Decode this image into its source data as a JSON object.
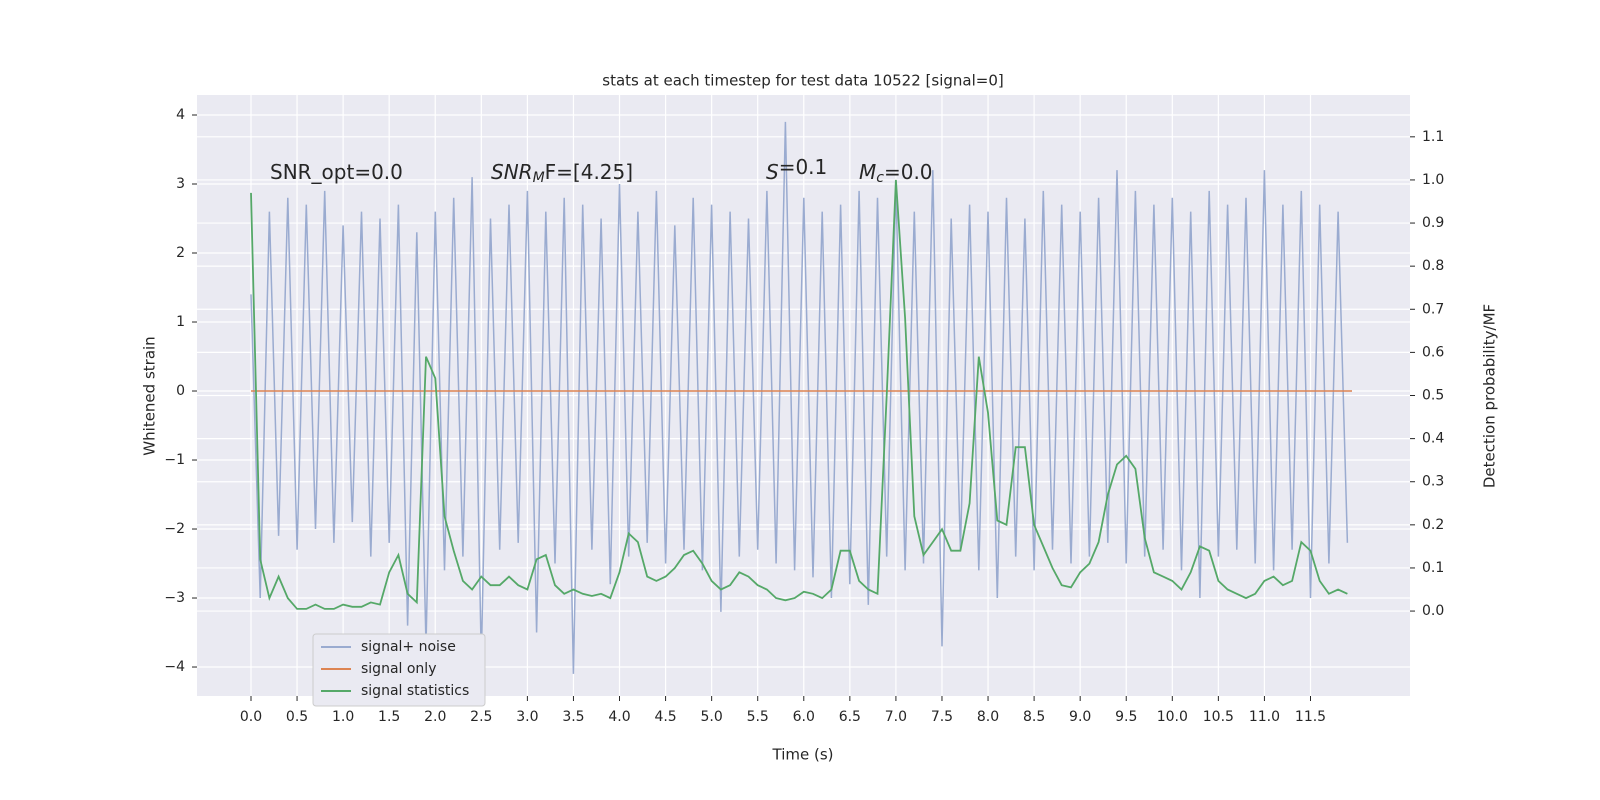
{
  "chart_data": {
    "type": "line",
    "title": "stats at each timestep for test data 10522 [signal=0]",
    "xlabel": "Time (s)",
    "ylabel": "Whitened strain",
    "y2label": "Detection probability/MF",
    "annotations": [
      [
        "SNR_opt=0.0"
      ],
      [
        "SNR",
        "M",
        "F=[4.25]"
      ],
      [
        "S",
        "",
        "=0.1"
      ],
      [
        "M",
        "c",
        "=0.0"
      ]
    ],
    "grid": true,
    "background": "#eaeaf2",
    "legend": "lower left",
    "xlim": [
      -0.586,
      12.58
    ],
    "ylim": [
      -4.42,
      4.29
    ],
    "y2lim": [
      -0.197,
      1.197
    ],
    "xticks": [
      {
        "value": 0,
        "label": "0.0"
      },
      {
        "value": 0.5,
        "label": "0.5"
      },
      {
        "value": 1,
        "label": "1.0"
      },
      {
        "value": 1.5,
        "label": "1.5"
      },
      {
        "value": 2,
        "label": "2.0"
      },
      {
        "value": 2.5,
        "label": "2.5"
      },
      {
        "value": 3,
        "label": "3.0"
      },
      {
        "value": 3.5,
        "label": "3.5"
      },
      {
        "value": 4,
        "label": "4.0"
      },
      {
        "value": 4.5,
        "label": "4.5"
      },
      {
        "value": 5,
        "label": "5.0"
      },
      {
        "value": 5.5,
        "label": "5.5"
      },
      {
        "value": 6,
        "label": "6.0"
      },
      {
        "value": 6.5,
        "label": "6.5"
      },
      {
        "value": 7,
        "label": "7.0"
      },
      {
        "value": 7.5,
        "label": "7.5"
      },
      {
        "value": 8,
        "label": "8.0"
      },
      {
        "value": 8.5,
        "label": "8.5"
      },
      {
        "value": 9,
        "label": "9.0"
      },
      {
        "value": 9.5,
        "label": "9.5"
      },
      {
        "value": 10,
        "label": "10.0"
      },
      {
        "value": 10.5,
        "label": "10.5"
      },
      {
        "value": 11,
        "label": "11.0"
      },
      {
        "value": 11.5,
        "label": "11.5"
      }
    ],
    "yticks": [
      {
        "value": -4,
        "label": "−4"
      },
      {
        "value": -3,
        "label": "−3"
      },
      {
        "value": -2,
        "label": "−2"
      },
      {
        "value": -1,
        "label": "−1"
      },
      0,
      1,
      2,
      3,
      4
    ],
    "y2ticks": [
      {
        "value": 0,
        "label": "0.0"
      },
      {
        "value": 0.1,
        "label": "0.1"
      },
      {
        "value": 0.2,
        "label": "0.2"
      },
      {
        "value": 0.3,
        "label": "0.3"
      },
      {
        "value": 0.4,
        "label": "0.4"
      },
      {
        "value": 0.5,
        "label": "0.5"
      },
      {
        "value": 0.6,
        "label": "0.6"
      },
      {
        "value": 0.7,
        "label": "0.7"
      },
      {
        "value": 0.8,
        "label": "0.8"
      },
      {
        "value": 0.9,
        "label": "0.9"
      },
      {
        "value": 1,
        "label": "1.0"
      },
      {
        "value": 1.1,
        "label": "1.1"
      }
    ],
    "series": [
      {
        "name": "signal+ noise",
        "color": "#9aabd0",
        "axis": "y",
        "x": [
          0,
          0.1,
          0.2,
          0.3,
          0.4,
          0.5,
          0.6,
          0.7,
          0.8,
          0.9,
          1,
          1.1,
          1.2,
          1.3,
          1.4,
          1.5,
          1.6,
          1.7,
          1.8,
          1.9,
          2,
          2.1,
          2.2,
          2.3,
          2.4,
          2.5,
          2.6,
          2.7,
          2.8,
          2.9,
          3,
          3.1,
          3.2,
          3.3,
          3.4,
          3.5,
          3.6,
          3.7,
          3.8,
          3.9,
          4,
          4.1,
          4.2,
          4.3,
          4.4,
          4.5,
          4.6,
          4.7,
          4.8,
          4.9,
          5,
          5.1,
          5.2,
          5.3,
          5.4,
          5.5,
          5.6,
          5.7,
          5.8,
          5.9,
          6,
          6.1,
          6.2,
          6.3,
          6.4,
          6.5,
          6.6,
          6.7,
          6.8,
          6.9,
          7,
          7.1,
          7.2,
          7.3,
          7.4,
          7.5,
          7.6,
          7.7,
          7.8,
          7.9,
          8,
          8.1,
          8.2,
          8.3,
          8.4,
          8.5,
          8.6,
          8.7,
          8.8,
          8.9,
          9,
          9.1,
          9.2,
          9.3,
          9.4,
          9.5,
          9.6,
          9.7,
          9.8,
          9.9,
          10,
          10.1,
          10.2,
          10.3,
          10.4,
          10.5,
          10.6,
          10.7,
          10.8,
          10.9,
          11,
          11.1,
          11.2,
          11.3,
          11.4,
          11.5,
          11.6,
          11.7,
          11.8,
          11.9
        ],
        "values": [
          1.4,
          -3.0,
          2.6,
          -2.1,
          2.8,
          -2.3,
          2.7,
          -2.0,
          2.9,
          -2.2,
          2.4,
          -1.9,
          2.6,
          -2.4,
          2.5,
          -2.2,
          2.7,
          -3.4,
          2.3,
          -3.7,
          2.6,
          -2.6,
          2.8,
          -2.4,
          3.1,
          -3.9,
          2.5,
          -2.3,
          2.7,
          -2.2,
          2.9,
          -3.5,
          2.6,
          -2.5,
          2.8,
          -4.1,
          2.7,
          -2.3,
          2.5,
          -2.8,
          3.0,
          -2.4,
          2.6,
          -2.2,
          2.9,
          -2.5,
          2.4,
          -2.3,
          2.8,
          -2.6,
          2.7,
          -3.2,
          2.6,
          -2.4,
          2.5,
          -2.3,
          2.9,
          -2.5,
          3.9,
          -2.6,
          2.8,
          -2.7,
          2.6,
          -3.0,
          2.7,
          -2.8,
          2.9,
          -3.1,
          2.8,
          -2.4,
          3.0,
          -2.6,
          2.6,
          -2.5,
          3.2,
          -3.7,
          2.5,
          -2.3,
          2.7,
          -2.6,
          2.6,
          -3.0,
          2.8,
          -2.4,
          2.5,
          -2.6,
          2.9,
          -2.3,
          2.7,
          -2.5,
          2.6,
          -2.4,
          2.8,
          -2.2,
          3.2,
          -2.5,
          2.9,
          -2.4,
          2.7,
          -2.3,
          2.8,
          -2.6,
          2.6,
          -3.0,
          2.9,
          -2.4,
          2.7,
          -2.3,
          2.8,
          -2.5,
          3.2,
          -2.6,
          2.7,
          -2.3,
          2.9,
          -3.0,
          2.7,
          -2.5,
          2.6,
          -2.2
        ]
      },
      {
        "name": "signal only",
        "color": "#dd8452",
        "axis": "y",
        "x": [
          0,
          11.95
        ],
        "values": [
          0,
          0
        ]
      },
      {
        "name": "signal statistics",
        "color": "#55a868",
        "axis": "y2",
        "x": [
          0,
          0.1,
          0.2,
          0.3,
          0.4,
          0.5,
          0.6,
          0.7,
          0.8,
          0.9,
          1,
          1.1,
          1.2,
          1.3,
          1.4,
          1.5,
          1.6,
          1.7,
          1.8,
          1.9,
          2,
          2.1,
          2.2,
          2.3,
          2.4,
          2.5,
          2.6,
          2.7,
          2.8,
          2.9,
          3,
          3.1,
          3.2,
          3.3,
          3.4,
          3.5,
          3.6,
          3.7,
          3.8,
          3.9,
          4,
          4.1,
          4.2,
          4.3,
          4.4,
          4.5,
          4.6,
          4.7,
          4.8,
          4.9,
          5,
          5.1,
          5.2,
          5.3,
          5.4,
          5.5,
          5.6,
          5.7,
          5.8,
          5.9,
          6,
          6.1,
          6.2,
          6.3,
          6.4,
          6.5,
          6.6,
          6.7,
          6.8,
          6.9,
          7,
          7.1,
          7.2,
          7.3,
          7.4,
          7.5,
          7.6,
          7.7,
          7.8,
          7.9,
          8,
          8.1,
          8.2,
          8.3,
          8.4,
          8.5,
          8.6,
          8.7,
          8.8,
          8.9,
          9,
          9.1,
          9.2,
          9.3,
          9.4,
          9.5,
          9.6,
          9.7,
          9.8,
          9.9,
          10,
          10.1,
          10.2,
          10.3,
          10.4,
          10.5,
          10.6,
          10.7,
          10.8,
          10.9,
          11,
          11.1,
          11.2,
          11.3,
          11.4,
          11.5,
          11.6,
          11.7,
          11.8,
          11.9
        ],
        "values": [
          0.97,
          0.12,
          0.03,
          0.08,
          0.03,
          0.005,
          0.005,
          0.015,
          0.005,
          0.005,
          0.015,
          0.01,
          0.01,
          0.02,
          0.015,
          0.09,
          0.13,
          0.04,
          0.02,
          0.59,
          0.54,
          0.22,
          0.14,
          0.07,
          0.05,
          0.08,
          0.06,
          0.06,
          0.08,
          0.06,
          0.05,
          0.12,
          0.13,
          0.06,
          0.04,
          0.05,
          0.04,
          0.035,
          0.04,
          0.03,
          0.09,
          0.18,
          0.16,
          0.08,
          0.07,
          0.08,
          0.1,
          0.13,
          0.14,
          0.11,
          0.07,
          0.05,
          0.06,
          0.09,
          0.08,
          0.06,
          0.05,
          0.03,
          0.025,
          0.03,
          0.045,
          0.04,
          0.03,
          0.05,
          0.14,
          0.14,
          0.07,
          0.05,
          0.04,
          0.5,
          1.0,
          0.68,
          0.22,
          0.13,
          0.16,
          0.19,
          0.14,
          0.14,
          0.25,
          0.59,
          0.46,
          0.21,
          0.2,
          0.38,
          0.38,
          0.2,
          0.15,
          0.1,
          0.06,
          0.055,
          0.09,
          0.11,
          0.16,
          0.27,
          0.34,
          0.36,
          0.33,
          0.17,
          0.09,
          0.08,
          0.07,
          0.05,
          0.09,
          0.15,
          0.14,
          0.07,
          0.05,
          0.04,
          0.03,
          0.04,
          0.07,
          0.08,
          0.06,
          0.07,
          0.16,
          0.14,
          0.07,
          0.04,
          0.05,
          0.04
        ]
      }
    ]
  }
}
